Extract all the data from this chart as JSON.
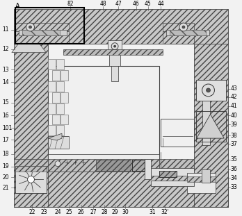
{
  "bg_color": "#e8e8e8",
  "wall_fc": "#c8c8c8",
  "wall_hatch": "////",
  "wall_ec": "#444444",
  "line_color": "#333333",
  "white": "#ffffff",
  "label_A": "A",
  "top_labels": [
    [
      "82",
      100
    ],
    [
      "48",
      148
    ],
    [
      "47",
      170
    ],
    [
      "46",
      196
    ],
    [
      "45",
      213
    ],
    [
      "44",
      232
    ]
  ],
  "left_labels": [
    [
      "11",
      42
    ],
    [
      "12",
      70
    ],
    [
      "13",
      100
    ],
    [
      "14",
      118
    ],
    [
      "15",
      148
    ],
    [
      "16",
      167
    ],
    [
      "101",
      185
    ],
    [
      "17",
      202
    ],
    [
      "18",
      223
    ],
    [
      "19",
      241
    ],
    [
      "20",
      257
    ],
    [
      "21",
      272
    ]
  ],
  "right_labels": [
    [
      "43",
      128
    ],
    [
      "42",
      140
    ],
    [
      "41",
      153
    ],
    [
      "40",
      167
    ],
    [
      "39",
      180
    ],
    [
      "38",
      196
    ],
    [
      "37",
      208
    ],
    [
      "35",
      231
    ],
    [
      "36",
      245
    ],
    [
      "34",
      258
    ],
    [
      "33",
      271
    ]
  ],
  "bottom_labels": [
    [
      "22",
      45
    ],
    [
      "23",
      62
    ],
    [
      "24",
      82
    ],
    [
      "25",
      98
    ],
    [
      "26",
      116
    ],
    [
      "27",
      134
    ],
    [
      "28",
      150
    ],
    [
      "29",
      165
    ],
    [
      "30",
      180
    ],
    [
      "31",
      220
    ],
    [
      "32'",
      238
    ]
  ]
}
